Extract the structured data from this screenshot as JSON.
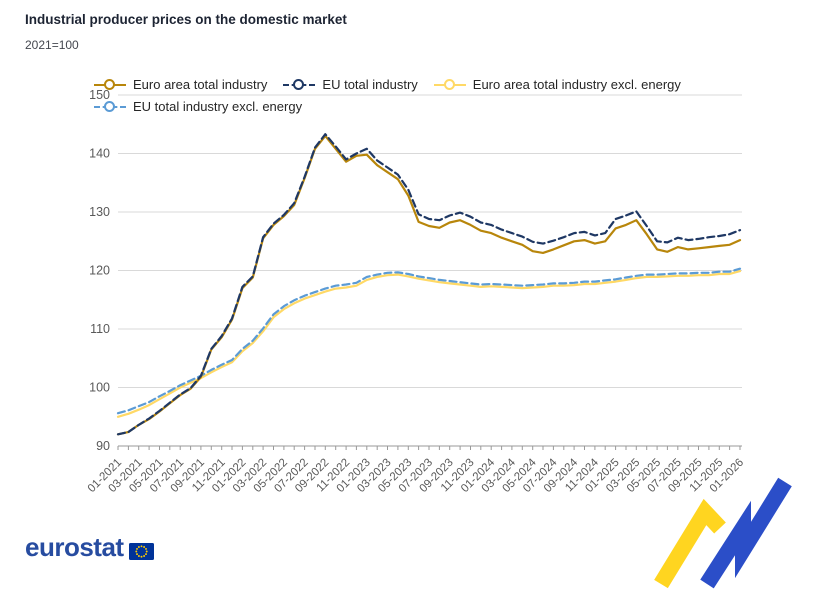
{
  "page": {
    "title": "Industrial producer prices on the domestic market",
    "subtitle": "2021=100"
  },
  "footer": {
    "logo_text": "eurostat"
  },
  "icons": {
    "eu_flag": "eu-flag-icon",
    "motif": "eurostat-stripes-motif"
  },
  "colors": {
    "background": "#FFFFFF",
    "title": "#1D2433",
    "subtitle": "#44474F",
    "axis_text": "#595959",
    "gridline": "#D9D9D9",
    "axis_line": "#999999",
    "legend_text": "#262626",
    "logo_blue": "#274CA0",
    "flag_blue": "#003399",
    "star_yellow": "#FFCC00",
    "motif_yellow": "#FFD520",
    "motif_blue": "#2B4EC8"
  },
  "chart_data": {
    "type": "line",
    "title": "Industrial producer prices on the domestic market",
    "subtitle": "2021=100",
    "grid": "horizontal",
    "legend_position": "top",
    "ylim": [
      90,
      150
    ],
    "yticks": [
      90,
      100,
      110,
      120,
      130,
      140,
      150
    ],
    "x_label_step": 2,
    "x": [
      "01-2021",
      "02-2021",
      "03-2021",
      "04-2021",
      "05-2021",
      "06-2021",
      "07-2021",
      "08-2021",
      "09-2021",
      "10-2021",
      "11-2021",
      "12-2021",
      "01-2022",
      "02-2022",
      "03-2022",
      "04-2022",
      "05-2022",
      "06-2022",
      "07-2022",
      "08-2022",
      "09-2022",
      "10-2022",
      "11-2022",
      "12-2022",
      "01-2023",
      "02-2023",
      "03-2023",
      "04-2023",
      "05-2023",
      "06-2023",
      "07-2023",
      "08-2023",
      "09-2023",
      "10-2023",
      "11-2023",
      "12-2023",
      "01-2024",
      "02-2024",
      "03-2024",
      "04-2024",
      "05-2024",
      "06-2024",
      "07-2024",
      "08-2024",
      "09-2024",
      "10-2024",
      "11-2024",
      "12-2024",
      "01-2025",
      "02-2025",
      "03-2025",
      "04-2025",
      "05-2025",
      "06-2025",
      "07-2025",
      "08-2025",
      "09-2025",
      "10-2025",
      "11-2025",
      "12-2025",
      "01-2026"
    ],
    "series": [
      {
        "name": "Euro area total industry",
        "color": "#B8860B",
        "dash": null,
        "values": [
          92.0,
          92.4,
          93.6,
          94.6,
          95.9,
          97.3,
          98.7,
          99.8,
          101.8,
          106.5,
          108.6,
          111.6,
          117.0,
          118.8,
          125.5,
          127.8,
          129.3,
          131.2,
          135.8,
          140.8,
          143.0,
          140.8,
          138.6,
          139.6,
          139.8,
          138.0,
          136.8,
          135.6,
          132.8,
          128.3,
          127.6,
          127.3,
          128.2,
          128.6,
          127.8,
          126.8,
          126.4,
          125.6,
          125.0,
          124.4,
          123.3,
          123.0,
          123.6,
          124.3,
          125.0,
          125.2,
          124.6,
          125.0,
          127.2,
          127.8,
          128.6,
          126.2,
          123.6,
          123.2,
          124.0,
          123.6,
          123.8,
          124.0,
          124.2,
          124.4,
          125.2
        ]
      },
      {
        "name": "EU total industry",
        "color": "#1F3864",
        "dash": "7 4",
        "values": [
          92.0,
          92.4,
          93.6,
          94.7,
          96.0,
          97.4,
          98.8,
          99.9,
          102.0,
          106.6,
          108.8,
          111.8,
          117.2,
          119.0,
          125.7,
          128.0,
          129.5,
          131.5,
          136.0,
          141.0,
          143.3,
          141.2,
          139.0,
          140.0,
          140.8,
          138.8,
          137.6,
          136.4,
          133.8,
          129.6,
          128.8,
          128.6,
          129.4,
          129.9,
          129.2,
          128.2,
          127.8,
          127.0,
          126.4,
          125.8,
          124.9,
          124.6,
          125.1,
          125.7,
          126.4,
          126.6,
          126.0,
          126.4,
          128.8,
          129.4,
          130.1,
          127.6,
          125.0,
          124.8,
          125.6,
          125.2,
          125.4,
          125.7,
          125.9,
          126.2,
          126.9
        ]
      },
      {
        "name": "Euro area total industry excl. energy",
        "color": "#FFD966",
        "dash": null,
        "values": [
          95.0,
          95.5,
          96.2,
          97.0,
          98.0,
          99.0,
          100.0,
          100.8,
          101.6,
          102.6,
          103.5,
          104.3,
          106.2,
          107.6,
          109.6,
          112.0,
          113.4,
          114.4,
          115.2,
          115.8,
          116.4,
          116.9,
          117.1,
          117.4,
          118.4,
          118.9,
          119.2,
          119.3,
          119.0,
          118.6,
          118.3,
          118.0,
          117.8,
          117.6,
          117.4,
          117.2,
          117.3,
          117.2,
          117.1,
          117.0,
          117.1,
          117.2,
          117.4,
          117.4,
          117.5,
          117.7,
          117.7,
          117.9,
          118.1,
          118.4,
          118.7,
          118.9,
          118.9,
          119.0,
          119.1,
          119.1,
          119.2,
          119.2,
          119.4,
          119.4,
          119.9
        ]
      },
      {
        "name": "EU total industry excl. energy",
        "color": "#5B9BD5",
        "dash": "7 4",
        "values": [
          95.6,
          96.1,
          96.8,
          97.5,
          98.5,
          99.4,
          100.4,
          101.2,
          102.0,
          103.0,
          103.9,
          104.7,
          106.6,
          108.0,
          110.1,
          112.5,
          113.9,
          114.9,
          115.7,
          116.3,
          116.9,
          117.4,
          117.6,
          117.9,
          118.9,
          119.3,
          119.6,
          119.7,
          119.4,
          119.0,
          118.7,
          118.4,
          118.2,
          118.0,
          117.8,
          117.6,
          117.7,
          117.6,
          117.5,
          117.4,
          117.5,
          117.6,
          117.8,
          117.8,
          117.9,
          118.1,
          118.1,
          118.3,
          118.5,
          118.8,
          119.1,
          119.3,
          119.3,
          119.4,
          119.5,
          119.5,
          119.6,
          119.6,
          119.8,
          119.8,
          120.3
        ]
      }
    ]
  }
}
